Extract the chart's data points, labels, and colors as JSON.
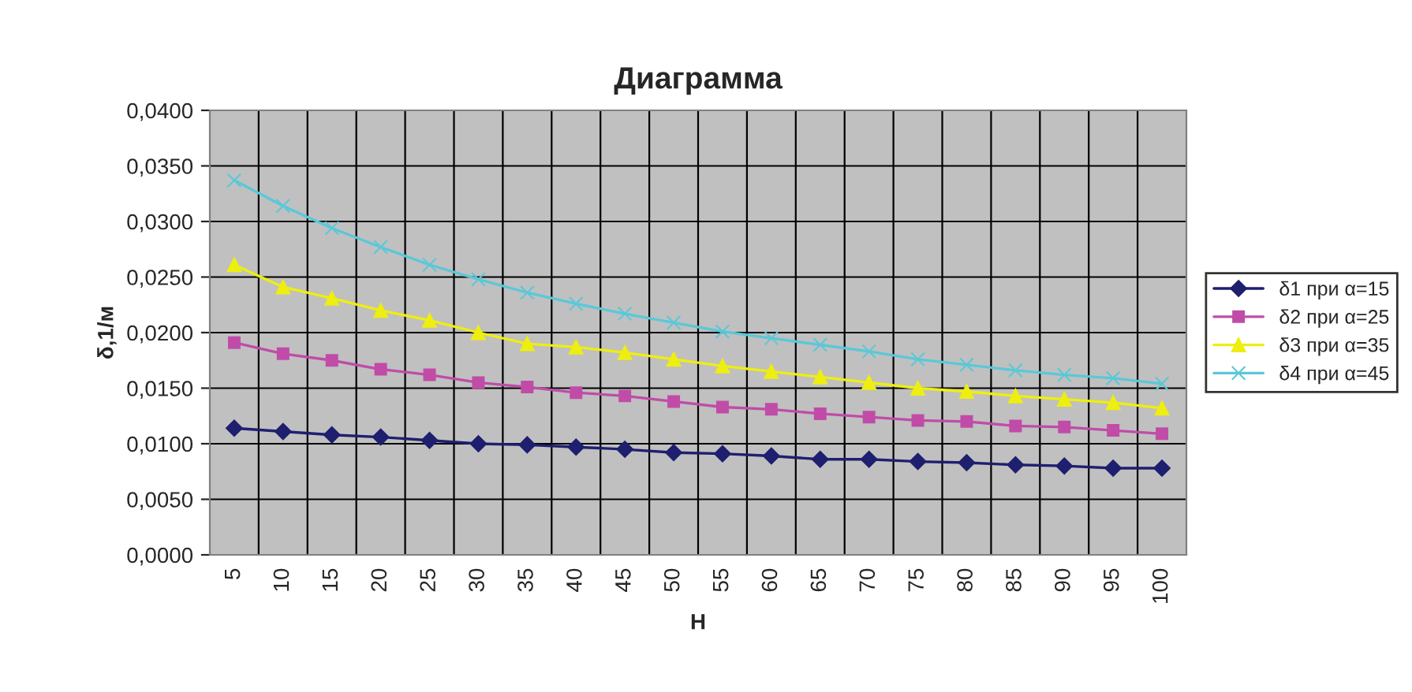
{
  "chart_data": {
    "type": "line",
    "title": "Диаграмма",
    "xlabel": "H",
    "ylabel": "δ,1/м",
    "categories": [
      "5",
      "10",
      "15",
      "20",
      "25",
      "30",
      "35",
      "40",
      "45",
      "50",
      "55",
      "60",
      "65",
      "70",
      "75",
      "80",
      "85",
      "90",
      "95",
      "100"
    ],
    "series": [
      {
        "name": "δ1 при α=15",
        "color": "#1f1f70",
        "marker": "diamond",
        "values": [
          0.0114,
          0.0111,
          0.0108,
          0.0106,
          0.0103,
          0.01,
          0.0099,
          0.0097,
          0.0095,
          0.0092,
          0.0091,
          0.0089,
          0.0086,
          0.0086,
          0.0084,
          0.0083,
          0.0081,
          0.008,
          0.0078,
          0.0078
        ]
      },
      {
        "name": "δ2 при α=25",
        "color": "#c04ca8",
        "marker": "square",
        "values": [
          0.0191,
          0.0181,
          0.0175,
          0.0167,
          0.0162,
          0.0155,
          0.0151,
          0.0146,
          0.0143,
          0.0138,
          0.0133,
          0.0131,
          0.0127,
          0.0124,
          0.0121,
          0.012,
          0.0116,
          0.0115,
          0.0112,
          0.0109
        ]
      },
      {
        "name": "δ3 при α=35",
        "color": "#eeee10",
        "marker": "triangle",
        "values": [
          0.0261,
          0.0241,
          0.0231,
          0.022,
          0.0211,
          0.02,
          0.019,
          0.0187,
          0.0182,
          0.0176,
          0.017,
          0.0165,
          0.016,
          0.0155,
          0.015,
          0.0147,
          0.0143,
          0.014,
          0.0137,
          0.0132
        ]
      },
      {
        "name": "δ4 при α=45",
        "color": "#5ac8d8",
        "marker": "cross",
        "values": [
          0.0337,
          0.0314,
          0.0294,
          0.0277,
          0.0261,
          0.0248,
          0.0236,
          0.0226,
          0.0217,
          0.0209,
          0.0201,
          0.0195,
          0.0189,
          0.0183,
          0.0176,
          0.0171,
          0.0166,
          0.0162,
          0.0159,
          0.0154
        ]
      }
    ],
    "ylim": [
      0,
      0.04
    ],
    "yticks": [
      {
        "value": 0,
        "label": "0,0000"
      },
      {
        "value": 0.005,
        "label": "0,0050"
      },
      {
        "value": 0.01,
        "label": "0,0100"
      },
      {
        "value": 0.015,
        "label": "0,0150"
      },
      {
        "value": 0.02,
        "label": "0,0200"
      },
      {
        "value": 0.025,
        "label": "0,0250"
      },
      {
        "value": 0.03,
        "label": "0,0300"
      },
      {
        "value": 0.035,
        "label": "0,0350"
      },
      {
        "value": 0.04,
        "label": "0,0400"
      }
    ],
    "grid": true,
    "legend": "right",
    "line_style": "solid"
  }
}
